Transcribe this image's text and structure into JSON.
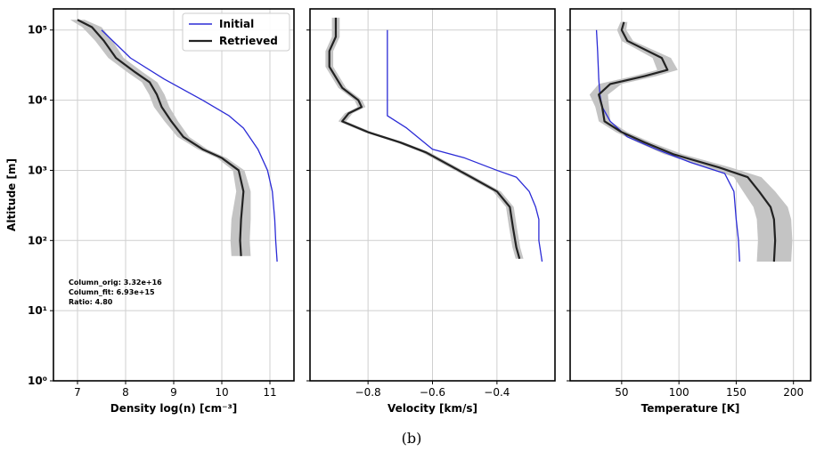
{
  "caption": "(b)",
  "legend": {
    "position": "top-center-left",
    "initial_label": "Initial",
    "retrieved_label": "Retrieved"
  },
  "colors": {
    "initial": "#2b2bd6",
    "retrieved": "#222222",
    "band": "#c4c4c4"
  },
  "annotation": {
    "line1": "Column_orig: 3.32e+16",
    "line2": "Column_fit: 6.93e+15",
    "line3": "Ratio: 4.80"
  },
  "chart_data": [
    {
      "type": "line",
      "xlabel": "Density log(n) [cm⁻³]",
      "ylabel": "Altitude [m]",
      "xlim": [
        6.5,
        11.5
      ],
      "xticks": [
        7,
        8,
        9,
        10,
        11
      ],
      "xtick_labels": [
        "7",
        "8",
        "9",
        "10",
        "11"
      ],
      "ylim": [
        1,
        200000
      ],
      "yscale": "log",
      "yticks": [
        1,
        10,
        100,
        1000,
        10000,
        100000
      ],
      "ytick_labels": [
        "10⁰",
        "10¹",
        "10²",
        "10³",
        "10⁴",
        "10⁵"
      ],
      "grid": true,
      "series": [
        {
          "name": "Initial",
          "points": [
            [
              11.15,
              50
            ],
            [
              11.12,
              100
            ],
            [
              11.1,
              200
            ],
            [
              11.05,
              500
            ],
            [
              10.95,
              1000
            ],
            [
              10.75,
              2000
            ],
            [
              10.45,
              4000
            ],
            [
              10.15,
              6000
            ],
            [
              9.6,
              10000
            ],
            [
              8.8,
              20000
            ],
            [
              8.1,
              40000
            ],
            [
              7.5,
              100000
            ]
          ]
        },
        {
          "name": "Retrieved",
          "points": [
            [
              10.4,
              60
            ],
            [
              10.38,
              100
            ],
            [
              10.4,
              200
            ],
            [
              10.45,
              500
            ],
            [
              10.35,
              1000
            ],
            [
              10.0,
              1500
            ],
            [
              9.6,
              2000
            ],
            [
              9.2,
              3000
            ],
            [
              8.95,
              5000
            ],
            [
              8.75,
              8000
            ],
            [
              8.65,
              12000
            ],
            [
              8.5,
              18000
            ],
            [
              8.2,
              25000
            ],
            [
              7.8,
              40000
            ],
            [
              7.55,
              70000
            ],
            [
              7.3,
              110000
            ],
            [
              7.0,
              140000
            ]
          ],
          "band_halfwidth": [
            0.2,
            0.2,
            0.2,
            0.15,
            0.12,
            0.1,
            0.1,
            0.12,
            0.14,
            0.16,
            0.16,
            0.16,
            0.16,
            0.16,
            0.18,
            0.2,
            0.15
          ]
        }
      ]
    },
    {
      "type": "line",
      "xlabel": "Velocity [km/s]",
      "ylabel": "",
      "xlim": [
        -0.98,
        -0.22
      ],
      "xticks": [
        -0.8,
        -0.6,
        -0.4
      ],
      "xtick_labels": [
        "−0.8",
        "−0.6",
        "−0.4"
      ],
      "ylim": [
        1,
        200000
      ],
      "yscale": "log",
      "yticks": [
        1,
        10,
        100,
        1000,
        10000,
        100000
      ],
      "grid": true,
      "series": [
        {
          "name": "Initial",
          "points": [
            [
              -0.26,
              50
            ],
            [
              -0.27,
              100
            ],
            [
              -0.27,
              200
            ],
            [
              -0.28,
              300
            ],
            [
              -0.3,
              500
            ],
            [
              -0.34,
              800
            ],
            [
              -0.4,
              1000
            ],
            [
              -0.5,
              1500
            ],
            [
              -0.6,
              2000
            ],
            [
              -0.68,
              4000
            ],
            [
              -0.74,
              6000
            ],
            [
              -0.74,
              10000
            ],
            [
              -0.74,
              30000
            ],
            [
              -0.74,
              100000
            ]
          ]
        },
        {
          "name": "Retrieved",
          "points": [
            [
              -0.33,
              55
            ],
            [
              -0.34,
              80
            ],
            [
              -0.35,
              150
            ],
            [
              -0.36,
              300
            ],
            [
              -0.4,
              500
            ],
            [
              -0.48,
              800
            ],
            [
              -0.55,
              1200
            ],
            [
              -0.62,
              1800
            ],
            [
              -0.7,
              2500
            ],
            [
              -0.8,
              3500
            ],
            [
              -0.88,
              5000
            ],
            [
              -0.86,
              6500
            ],
            [
              -0.82,
              8000
            ],
            [
              -0.83,
              10000
            ],
            [
              -0.88,
              15000
            ],
            [
              -0.92,
              30000
            ],
            [
              -0.92,
              50000
            ],
            [
              -0.9,
              80000
            ],
            [
              -0.9,
              150000
            ]
          ],
          "band_halfwidth": [
            0.012,
            0.012,
            0.012,
            0.012,
            0.012,
            0.012,
            0.012,
            0.012,
            0.012,
            0.012,
            0.012,
            0.012,
            0.012,
            0.012,
            0.012,
            0.012,
            0.012,
            0.012,
            0.012
          ]
        }
      ]
    },
    {
      "type": "line",
      "xlabel": "Temperature [K]",
      "ylabel": "",
      "xlim": [
        5,
        215
      ],
      "xticks": [
        50,
        100,
        150,
        200
      ],
      "xtick_labels": [
        "50",
        "100",
        "150",
        "200"
      ],
      "ylim": [
        1,
        200000
      ],
      "yscale": "log",
      "yticks": [
        1,
        10,
        100,
        1000,
        10000,
        100000
      ],
      "grid": true,
      "series": [
        {
          "name": "Initial",
          "points": [
            [
              153,
              50
            ],
            [
              152,
              100
            ],
            [
              150,
              200
            ],
            [
              148,
              500
            ],
            [
              140,
              900
            ],
            [
              110,
              1300
            ],
            [
              80,
              2000
            ],
            [
              55,
              3000
            ],
            [
              40,
              5000
            ],
            [
              33,
              8000
            ],
            [
              31,
              12000
            ],
            [
              30,
              20000
            ],
            [
              29,
              50000
            ],
            [
              28,
              100000
            ]
          ]
        },
        {
          "name": "Retrieved",
          "points": [
            [
              183,
              50
            ],
            [
              184,
              100
            ],
            [
              183,
              200
            ],
            [
              180,
              300
            ],
            [
              170,
              500
            ],
            [
              160,
              800
            ],
            [
              135,
              1100
            ],
            [
              95,
              1700
            ],
            [
              70,
              2500
            ],
            [
              50,
              3500
            ],
            [
              35,
              5000
            ],
            [
              33,
              8000
            ],
            [
              30,
              12000
            ],
            [
              40,
              17000
            ],
            [
              70,
              22000
            ],
            [
              90,
              27000
            ],
            [
              85,
              40000
            ],
            [
              55,
              70000
            ],
            [
              50,
              100000
            ],
            [
              52,
              130000
            ]
          ],
          "band_halfwidth": [
            15,
            15,
            15,
            15,
            14,
            12,
            10,
            8,
            6,
            5,
            5,
            6,
            8,
            10,
            10,
            9,
            8,
            5,
            4,
            3
          ]
        }
      ]
    }
  ]
}
